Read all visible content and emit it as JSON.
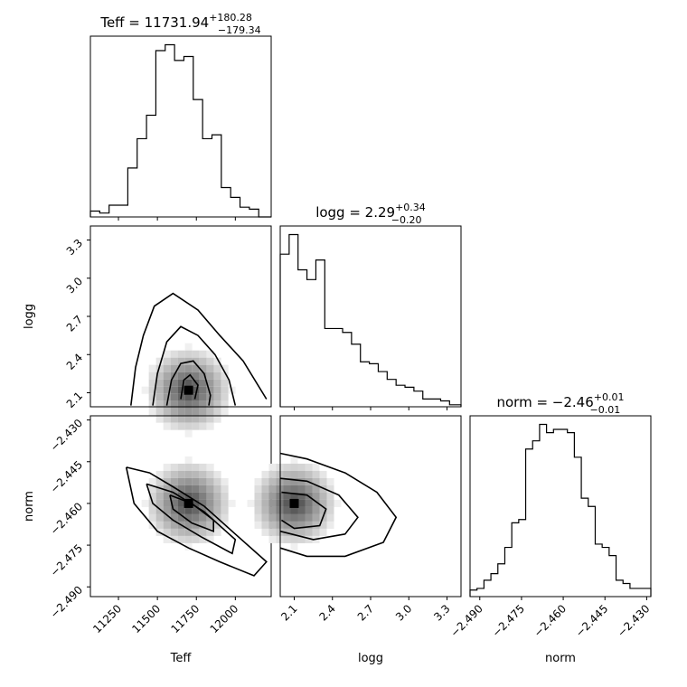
{
  "chart_data": [
    {
      "panel": "hist-Teff",
      "type": "histogram",
      "title": "Teff = 11731.94",
      "title_sup": "+180.28",
      "title_sub": "−179.34",
      "xlim": [
        11070,
        12230
      ],
      "xticks": [
        11250,
        11500,
        11750,
        12000
      ],
      "bins": [
        11070,
        11130,
        11190,
        11250,
        11310,
        11370,
        11430,
        11490,
        11550,
        11610,
        11670,
        11730,
        11790,
        11850,
        11910,
        11970,
        12030,
        12090,
        12150,
        12230
      ],
      "counts": [
        3,
        2,
        6,
        6,
        25,
        40,
        52,
        85,
        88,
        80,
        82,
        60,
        40,
        42,
        15,
        10,
        5,
        4,
        0
      ]
    },
    {
      "panel": "hist-logg",
      "type": "histogram",
      "title": "logg = 2.29",
      "title_sup": "+0.34",
      "title_sub": "−0.20",
      "xlim": [
        1.99,
        3.41
      ],
      "xticks": [
        2.1,
        2.4,
        2.7,
        3.0,
        3.3
      ],
      "bins": [
        1.99,
        2.06,
        2.13,
        2.2,
        2.27,
        2.34,
        2.41,
        2.48,
        2.55,
        2.62,
        2.69,
        2.76,
        2.83,
        2.9,
        2.97,
        3.04,
        3.11,
        3.18,
        3.25,
        3.32,
        3.41
      ],
      "counts": [
        78,
        88,
        70,
        65,
        75,
        40,
        40,
        38,
        32,
        23,
        22,
        18,
        14,
        11,
        10,
        8,
        4,
        4,
        3,
        1
      ]
    },
    {
      "panel": "hist-norm",
      "type": "histogram",
      "title": "norm = −2.46",
      "title_sup": "+0.01",
      "title_sub": "−0.01",
      "xlim": [
        -2.4935,
        -2.4285
      ],
      "xticks": [
        -2.49,
        -2.475,
        -2.46,
        -2.445,
        -2.43
      ],
      "bins": [
        -2.4935,
        -2.491,
        -2.4885,
        -2.486,
        -2.4835,
        -2.481,
        -2.4785,
        -2.476,
        -2.4735,
        -2.471,
        -2.4685,
        -2.466,
        -2.4635,
        -2.461,
        -2.4585,
        -2.456,
        -2.4535,
        -2.451,
        -2.4485,
        -2.446,
        -2.4435,
        -2.441,
        -2.4385,
        -2.436,
        -2.4335,
        -2.4285
      ],
      "counts": [
        4,
        5,
        10,
        14,
        20,
        30,
        45,
        47,
        90,
        95,
        105,
        100,
        102,
        102,
        100,
        85,
        60,
        55,
        32,
        30,
        25,
        10,
        8,
        5,
        5
      ]
    },
    {
      "panel": "corner-logg-vs-Teff",
      "type": "heatmap",
      "xlabel": "",
      "ylabel": "logg",
      "xlim": [
        11070,
        12230
      ],
      "ylim": [
        1.99,
        3.41
      ],
      "yticks": [
        2.1,
        2.4,
        2.7,
        3.0,
        3.3
      ],
      "density_peak": {
        "x": 11700,
        "y": 2.12
      },
      "contours": [
        [
          [
            11330,
            2.0
          ],
          [
            11360,
            2.3
          ],
          [
            11410,
            2.55
          ],
          [
            11480,
            2.78
          ],
          [
            11600,
            2.88
          ],
          [
            11760,
            2.75
          ],
          [
            11900,
            2.55
          ],
          [
            12050,
            2.35
          ],
          [
            12200,
            2.05
          ]
        ],
        [
          [
            11470,
            2.0
          ],
          [
            11500,
            2.25
          ],
          [
            11560,
            2.5
          ],
          [
            11650,
            2.62
          ],
          [
            11760,
            2.55
          ],
          [
            11870,
            2.4
          ],
          [
            11960,
            2.2
          ],
          [
            12000,
            2.0
          ]
        ],
        [
          [
            11560,
            2.0
          ],
          [
            11590,
            2.2
          ],
          [
            11650,
            2.33
          ],
          [
            11730,
            2.35
          ],
          [
            11800,
            2.25
          ],
          [
            11840,
            2.08
          ],
          [
            11830,
            2.0
          ]
        ],
        [
          [
            11650,
            2.05
          ],
          [
            11670,
            2.2
          ],
          [
            11710,
            2.24
          ],
          [
            11760,
            2.16
          ],
          [
            11740,
            2.05
          ]
        ]
      ]
    },
    {
      "panel": "corner-norm-vs-Teff",
      "type": "heatmap",
      "xlabel": "Teff",
      "ylabel": "norm",
      "xlim": [
        11070,
        12230
      ],
      "ylim": [
        -2.4935,
        -2.4285
      ],
      "xticks": [
        11250,
        11500,
        11750,
        12000
      ],
      "yticks": [
        -2.49,
        -2.475,
        -2.46,
        -2.445,
        -2.43
      ],
      "density_peak": {
        "x": 11700,
        "y": -2.46
      },
      "contours": [
        [
          [
            11300,
            -2.447
          ],
          [
            11450,
            -2.449
          ],
          [
            11600,
            -2.454
          ],
          [
            11800,
            -2.461
          ],
          [
            12000,
            -2.471
          ],
          [
            12200,
            -2.481
          ],
          [
            12120,
            -2.486
          ],
          [
            11900,
            -2.481
          ],
          [
            11700,
            -2.476
          ],
          [
            11500,
            -2.47
          ],
          [
            11350,
            -2.46
          ],
          [
            11300,
            -2.447
          ]
        ],
        [
          [
            11430,
            -2.453
          ],
          [
            11600,
            -2.456
          ],
          [
            11800,
            -2.463
          ],
          [
            12000,
            -2.473
          ],
          [
            11980,
            -2.478
          ],
          [
            11780,
            -2.472
          ],
          [
            11600,
            -2.466
          ],
          [
            11470,
            -2.46
          ],
          [
            11430,
            -2.453
          ]
        ],
        [
          [
            11580,
            -2.457
          ],
          [
            11720,
            -2.46
          ],
          [
            11860,
            -2.466
          ],
          [
            11860,
            -2.47
          ],
          [
            11720,
            -2.467
          ],
          [
            11600,
            -2.462
          ],
          [
            11580,
            -2.457
          ]
        ]
      ]
    },
    {
      "panel": "corner-norm-vs-logg",
      "type": "heatmap",
      "xlabel": "logg",
      "ylabel": "",
      "xlim": [
        1.99,
        3.41
      ],
      "ylim": [
        -2.4935,
        -2.4285
      ],
      "xticks": [
        2.1,
        2.4,
        2.7,
        3.0,
        3.3
      ],
      "density_peak": {
        "x": 2.1,
        "y": -2.46
      },
      "contours": [
        [
          [
            1.99,
            -2.442
          ],
          [
            2.2,
            -2.444
          ],
          [
            2.5,
            -2.449
          ],
          [
            2.75,
            -2.456
          ],
          [
            2.9,
            -2.465
          ],
          [
            2.8,
            -2.474
          ],
          [
            2.5,
            -2.479
          ],
          [
            2.2,
            -2.479
          ],
          [
            1.99,
            -2.476
          ]
        ],
        [
          [
            1.99,
            -2.451
          ],
          [
            2.2,
            -2.452
          ],
          [
            2.45,
            -2.457
          ],
          [
            2.6,
            -2.465
          ],
          [
            2.5,
            -2.471
          ],
          [
            2.25,
            -2.473
          ],
          [
            1.99,
            -2.47
          ]
        ],
        [
          [
            2.0,
            -2.456
          ],
          [
            2.2,
            -2.457
          ],
          [
            2.35,
            -2.462
          ],
          [
            2.3,
            -2.468
          ],
          [
            2.1,
            -2.469
          ],
          [
            2.0,
            -2.466
          ]
        ]
      ]
    }
  ],
  "axis_labels": {
    "teff": "Teff",
    "logg": "logg",
    "norm": "norm"
  },
  "colors": {
    "line": "#000000",
    "density_light": "#f0f0f0",
    "density_dark": "#202020"
  }
}
